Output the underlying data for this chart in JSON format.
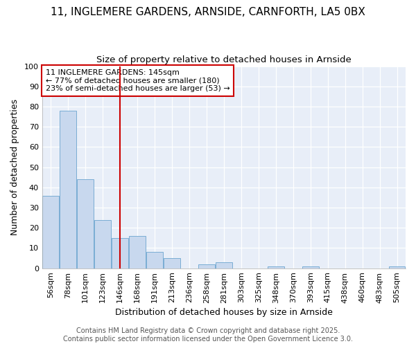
{
  "title1": "11, INGLEMERE GARDENS, ARNSIDE, CARNFORTH, LA5 0BX",
  "title2": "Size of property relative to detached houses in Arnside",
  "xlabel": "Distribution of detached houses by size in Arnside",
  "ylabel": "Number of detached properties",
  "categories": [
    "56sqm",
    "78sqm",
    "101sqm",
    "123sqm",
    "146sqm",
    "168sqm",
    "191sqm",
    "213sqm",
    "236sqm",
    "258sqm",
    "281sqm",
    "303sqm",
    "325sqm",
    "348sqm",
    "370sqm",
    "393sqm",
    "415sqm",
    "438sqm",
    "460sqm",
    "483sqm",
    "505sqm"
  ],
  "values": [
    36,
    78,
    44,
    24,
    15,
    16,
    8,
    5,
    0,
    2,
    3,
    0,
    0,
    1,
    0,
    1,
    0,
    0,
    0,
    0,
    1
  ],
  "bar_color": "#c8d8ee",
  "bar_edgecolor": "#7aadd4",
  "vline_x": 4,
  "vline_color": "#cc0000",
  "annotation_text": "11 INGLEMERE GARDENS: 145sqm\n← 77% of detached houses are smaller (180)\n23% of semi-detached houses are larger (53) →",
  "annotation_box_edgecolor": "#cc0000",
  "annotation_box_facecolor": "#ffffff",
  "ylim": [
    0,
    100
  ],
  "yticks": [
    0,
    10,
    20,
    30,
    40,
    50,
    60,
    70,
    80,
    90,
    100
  ],
  "bg_color": "#ffffff",
  "plot_bg_color": "#e8eef8",
  "footer1": "Contains HM Land Registry data © Crown copyright and database right 2025.",
  "footer2": "Contains public sector information licensed under the Open Government Licence 3.0.",
  "title_fontsize": 11,
  "subtitle_fontsize": 9.5,
  "axis_label_fontsize": 9,
  "tick_fontsize": 8,
  "footer_fontsize": 7
}
